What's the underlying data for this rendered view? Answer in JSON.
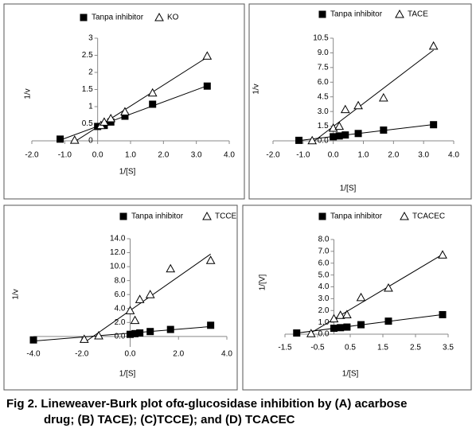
{
  "chart_data": [
    {
      "type": "scatter",
      "x_label": "1/[S]",
      "y_label": "1/v",
      "legend": "top",
      "trendline": true,
      "xlim": [
        -2,
        4
      ],
      "xticks": [
        {
          "value": -2,
          "label": "-2.0"
        },
        {
          "value": -1,
          "label": "-1.0"
        },
        {
          "value": 0,
          "label": "0.0"
        },
        {
          "value": 1,
          "label": "1.0"
        },
        {
          "value": 2,
          "label": "2.0"
        },
        {
          "value": 3,
          "label": "3.0"
        },
        {
          "value": 4,
          "label": "4.0"
        }
      ],
      "ylim": [
        0,
        3
      ],
      "yticks": [
        0,
        0.5,
        1,
        1.5,
        2,
        2.5,
        3
      ],
      "series": [
        {
          "name": "Tanpa inhibitor",
          "color": "#000000",
          "marker": "square",
          "x": [
            -1.14,
            0,
            0.2,
            0.4,
            0.83,
            1.67,
            3.33
          ],
          "values": [
            0.05,
            0.42,
            0.45,
            0.55,
            0.72,
            1.07,
            1.6
          ]
        },
        {
          "name": "KO",
          "color": "#000000",
          "marker": "triangle",
          "x": [
            -0.7,
            0.1,
            0.2,
            0.4,
            0.83,
            1.67,
            3.33
          ],
          "values": [
            0.02,
            0.45,
            0.55,
            0.65,
            0.85,
            1.4,
            2.48
          ]
        }
      ]
    },
    {
      "type": "scatter",
      "x_label": "1/[S]",
      "y_label": "1/v",
      "legend": "top",
      "trendline": true,
      "xlim": [
        -2,
        4
      ],
      "xticks": [
        {
          "value": -2,
          "label": "-2.0"
        },
        {
          "value": -1,
          "label": "-1.0"
        },
        {
          "value": 0,
          "label": "0.0"
        },
        {
          "value": 1,
          "label": "1.0"
        },
        {
          "value": 2,
          "label": "2.0"
        },
        {
          "value": 3,
          "label": "3.0"
        },
        {
          "value": 4,
          "label": "4.0"
        }
      ],
      "ylim": [
        0,
        10.5
      ],
      "yticks": [
        {
          "value": 0,
          "label": "0.0"
        },
        1.5,
        {
          "value": 3,
          "label": "3.0"
        },
        4.5,
        {
          "value": 6,
          "label": "6.0"
        },
        7.5,
        {
          "value": 9,
          "label": "9.0"
        },
        10.5
      ],
      "series": [
        {
          "name": "Tanpa inhibitor",
          "color": "#000000",
          "marker": "square",
          "x": [
            -1.14,
            0,
            0.2,
            0.4,
            0.83,
            1.67,
            3.33
          ],
          "values": [
            0.05,
            0.42,
            0.5,
            0.6,
            0.75,
            1.1,
            1.65
          ]
        },
        {
          "name": "TACE",
          "color": "#000000",
          "marker": "triangle",
          "x": [
            -0.7,
            0,
            0.2,
            0.4,
            0.83,
            1.67,
            3.33
          ],
          "values": [
            0.02,
            1.3,
            1.5,
            3.2,
            3.6,
            4.4,
            9.7
          ]
        }
      ]
    },
    {
      "type": "scatter",
      "x_label": "1/[S]",
      "y_label": "1/v",
      "legend": "top",
      "trendline": true,
      "xlim": [
        -4,
        4
      ],
      "xticks": [
        {
          "value": -4,
          "label": "-4.0"
        },
        {
          "value": -2,
          "label": "-2.0"
        },
        {
          "value": 0,
          "label": "0.0"
        },
        {
          "value": 2,
          "label": "2.0"
        },
        {
          "value": 4,
          "label": "4.0"
        }
      ],
      "ylim": [
        -1.5,
        14
      ],
      "yticks": [
        {
          "value": 0,
          "label": "0.0"
        },
        {
          "value": 2,
          "label": "2.0"
        },
        {
          "value": 4,
          "label": "4.0"
        },
        {
          "value": 6,
          "label": "6.0"
        },
        {
          "value": 8,
          "label": "8.0"
        },
        {
          "value": 10,
          "label": "10.0"
        },
        {
          "value": 12,
          "label": "12.0"
        },
        {
          "value": 14,
          "label": "14.0"
        }
      ],
      "series": [
        {
          "name": "Tanpa inhibitor",
          "color": "#000000",
          "marker": "square",
          "x": [
            -4,
            0,
            0.2,
            0.4,
            0.83,
            1.67,
            3.33
          ],
          "values": [
            -0.5,
            0.3,
            0.4,
            0.5,
            0.7,
            1.0,
            1.6
          ]
        },
        {
          "name": "TCCE",
          "color": "#000000",
          "marker": "triangle",
          "x": [
            -1.9,
            -1.3,
            0,
            0.2,
            0.4,
            0.83,
            1.67,
            3.33
          ],
          "values": [
            -0.4,
            0.1,
            3.7,
            2.3,
            5.3,
            6.0,
            9.7,
            10.9
          ]
        }
      ]
    },
    {
      "type": "scatter",
      "x_label": "1/[S]",
      "y_label": "1/[V]",
      "legend": "top",
      "trendline": true,
      "xlim": [
        -1.5,
        3.5
      ],
      "xticks": [
        -1.5,
        -0.5,
        0.5,
        1.5,
        2.5,
        3.5
      ],
      "ylim": [
        0,
        8
      ],
      "yticks": [
        {
          "value": 0,
          "label": "0.0"
        },
        {
          "value": 1,
          "label": "1.0"
        },
        {
          "value": 2,
          "label": "2.0"
        },
        {
          "value": 3,
          "label": "3.0"
        },
        {
          "value": 4,
          "label": "4.0"
        },
        {
          "value": 5,
          "label": "5.0"
        },
        {
          "value": 6,
          "label": "6.0"
        },
        {
          "value": 7,
          "label": "7.0"
        },
        {
          "value": 8,
          "label": "8.0"
        }
      ],
      "series": [
        {
          "name": "Tanpa inhibitor",
          "color": "#000000",
          "marker": "square",
          "x": [
            -1.14,
            0,
            0.2,
            0.4,
            0.83,
            1.67,
            3.33
          ],
          "values": [
            0.1,
            0.5,
            0.55,
            0.6,
            0.8,
            1.1,
            1.65
          ]
        },
        {
          "name": "TCACEC",
          "color": "#000000",
          "marker": "triangle",
          "x": [
            -0.7,
            0,
            0.2,
            0.4,
            0.83,
            1.67,
            3.33
          ],
          "values": [
            0.05,
            1.3,
            1.6,
            1.65,
            3.1,
            3.9,
            6.7
          ]
        }
      ]
    }
  ],
  "caption": [
    "Fig 2. Lineweaver-Burk plot ofα-glucosidase inhibition by (A) acarbose",
    "drug; (B) TACE); (C)TCCE); and (D) TCACEC"
  ]
}
